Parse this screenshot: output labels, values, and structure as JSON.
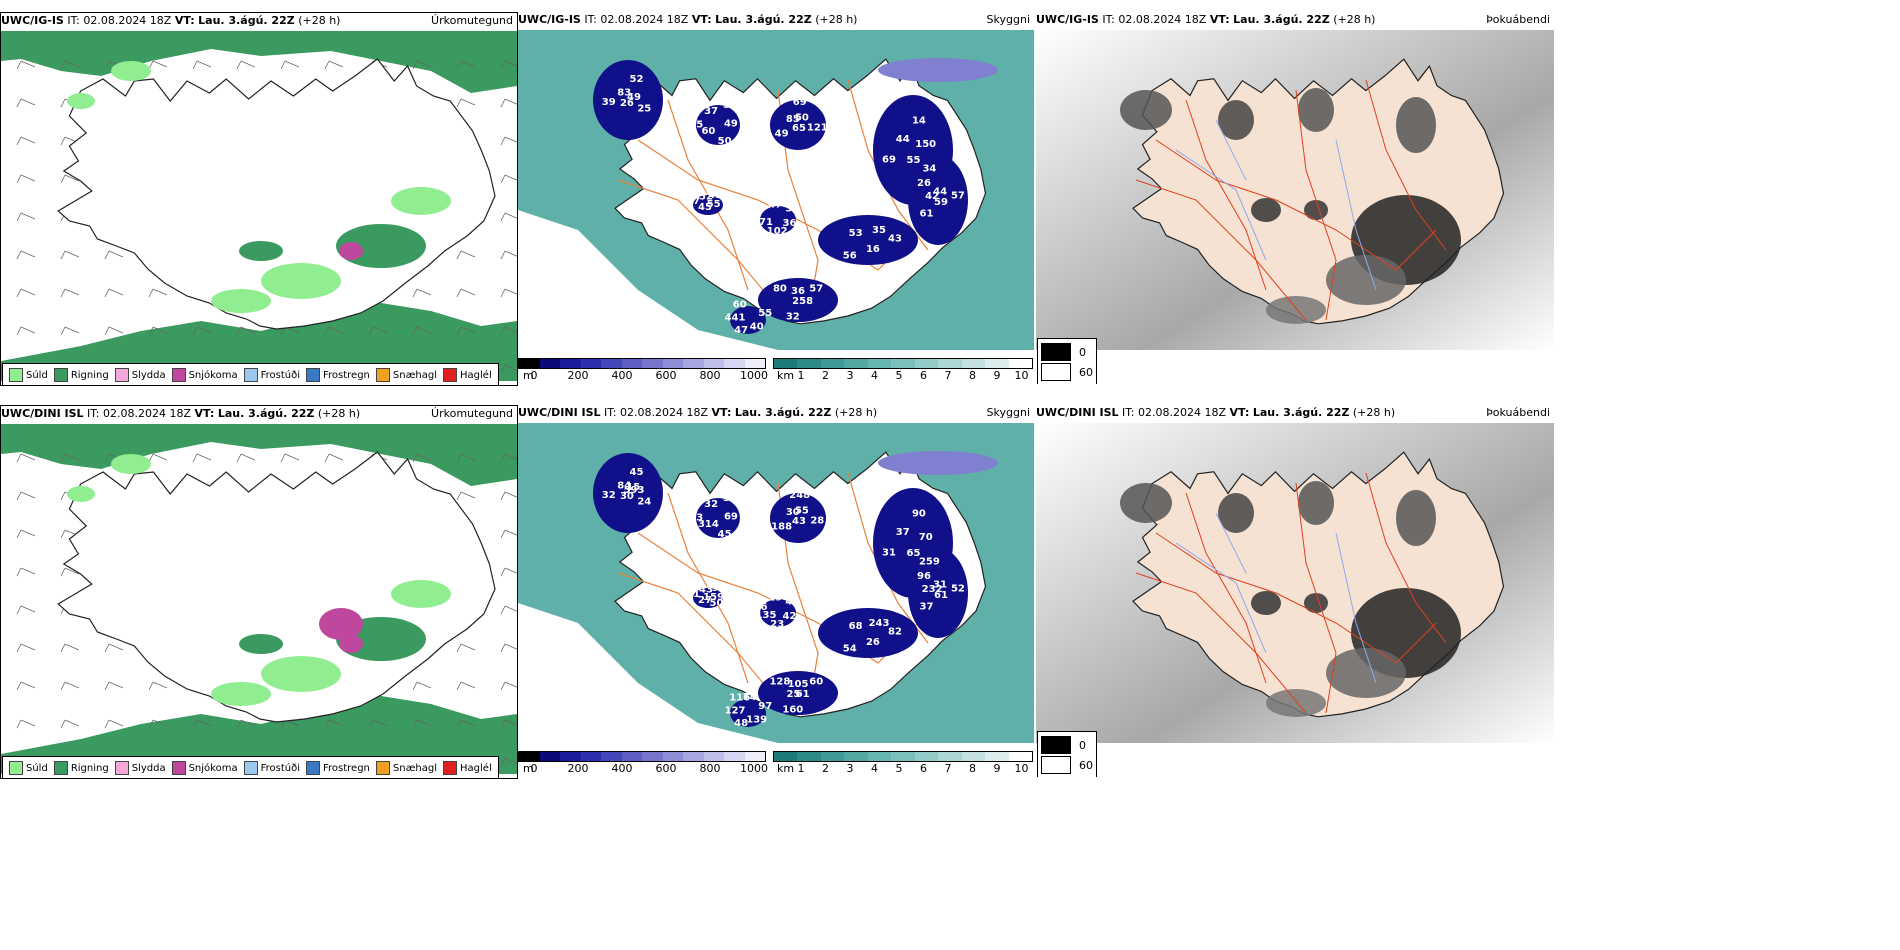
{
  "rows": [
    {
      "precip_panel": {
        "model": "UWC/IG-IS",
        "it_label": "IT:",
        "it_value": "02.08.2024 18Z",
        "vt_label": "VT:",
        "vt_value": "Lau. 3.ágú. 22Z",
        "lead": "(+28 h)",
        "param": "Úrkomutegund"
      },
      "vis_panel": {
        "model": "UWC/IG-IS",
        "it_label": "IT:",
        "it_value": "02.08.2024 18Z",
        "vt_label": "VT:",
        "vt_value": "Lau. 3.ágú. 22Z",
        "lead": "(+28 h)",
        "param": "Skyggni"
      },
      "fog_panel": {
        "model": "UWC/IG-IS",
        "it_label": "IT:",
        "it_value": "02.08.2024 18Z",
        "vt_label": "VT:",
        "vt_value": "Lau. 3.ágú. 22Z",
        "lead": "(+28 h)",
        "param": "Þokuábendi"
      },
      "cloud_labels": [
        "49",
        "60",
        "69",
        "34",
        "42",
        "35",
        "32",
        "60",
        "55",
        "71",
        "52",
        "50",
        "85",
        "150",
        "61",
        "58",
        "258",
        "441",
        "433",
        "102",
        "83",
        "49",
        "49",
        "14",
        "59",
        "53",
        "57",
        "47",
        "52",
        "36",
        "39",
        "51",
        "65",
        "44",
        "57",
        "56",
        "36",
        "40",
        "37",
        "32",
        "26",
        "37",
        "121",
        "69",
        "44",
        "16",
        "80",
        "55",
        "45",
        "47",
        "25",
        "25",
        "50",
        "55",
        "26",
        "43"
      ]
    },
    {
      "precip_panel": {
        "model": "UWC/DINI ISL",
        "it_label": "IT:",
        "it_value": "02.08.2024 18Z",
        "vt_label": "VT:",
        "vt_value": "Lau. 3.ágú. 22Z",
        "lead": "(+28 h)",
        "param": "Úrkomutegund"
      },
      "vis_panel": {
        "model": "UWC/DINI ISL",
        "it_label": "IT:",
        "it_value": "02.08.2024 18Z",
        "vt_label": "VT:",
        "vt_value": "Lau. 3.ágú. 22Z",
        "lead": "(+28 h)",
        "param": "Skyggni"
      },
      "fog_panel": {
        "model": "UWC/DINI ISL",
        "it_label": "IT:",
        "it_value": "02.08.2024 18Z",
        "vt_label": "VT:",
        "vt_value": "Lau. 3.ágú. 22Z",
        "lead": "(+28 h)",
        "param": "Þokuábendi"
      },
      "cloud_labels": [
        "593",
        "314",
        "248",
        "259",
        "232",
        "243",
        "160",
        "116",
        "159",
        "135",
        "45",
        "45",
        "30",
        "70",
        "37",
        "50",
        "61",
        "127",
        "93",
        "23",
        "84",
        "69",
        "188",
        "90",
        "61",
        "68",
        "60",
        "48",
        "43",
        "42",
        "32",
        "31",
        "43",
        "37",
        "52",
        "54",
        "105",
        "139",
        "51",
        "42",
        "30",
        "32",
        "28",
        "31",
        "31",
        "26",
        "128",
        "97",
        "27",
        "19",
        "24",
        "13",
        "55",
        "65",
        "96",
        "82",
        "25",
        "74",
        "50",
        "86",
        "15"
      ]
    }
  ],
  "precip_legend": [
    {
      "label": "Súld",
      "color": "#90ee90"
    },
    {
      "label": "Rigning",
      "color": "#3a9a5f"
    },
    {
      "label": "Slydda",
      "color": "#f2a8d8"
    },
    {
      "label": "Snjókoma",
      "color": "#c0479e"
    },
    {
      "label": "Frostúði",
      "color": "#9cc8f0"
    },
    {
      "label": "Frostregn",
      "color": "#3a78c8"
    },
    {
      "label": "Snæhagl",
      "color": "#f0a020"
    },
    {
      "label": "Haglél",
      "color": "#e02020"
    }
  ],
  "ceiling_bar": {
    "unit": "m",
    "ticks": [
      "0",
      "200",
      "400",
      "600",
      "800",
      "1000"
    ],
    "colors": [
      "#000000",
      "#0a0a7a",
      "#1c1c9a",
      "#2e2eae",
      "#4646bc",
      "#5e5ec6",
      "#7676cf",
      "#8e8ed8",
      "#a6a6e1",
      "#bebeea",
      "#d6d6f3",
      "#eeeefb"
    ]
  },
  "visibility_bar": {
    "unit": "km",
    "ticks": [
      "1",
      "2",
      "3",
      "4",
      "5",
      "6",
      "7",
      "8",
      "9",
      "10"
    ],
    "colors": [
      "#1e7c78",
      "#2f8b86",
      "#409a94",
      "#52a8a1",
      "#66b5ae",
      "#7bc1bb",
      "#92ccc7",
      "#aad7d3",
      "#c3e2df",
      "#dcedeb",
      "#ffffff"
    ]
  },
  "fog_legend": [
    {
      "label": "0",
      "color": "#000000"
    },
    {
      "label": "60",
      "color": "#ffffff"
    }
  ],
  "colors": {
    "sea_green": "#3a9a5f",
    "sea_teal": "#5fb0a8",
    "cloud_navy": "#10108a",
    "land_fog": "#f5e2d2",
    "roads": "#e8803a",
    "rivers": "#8fa8f0"
  }
}
